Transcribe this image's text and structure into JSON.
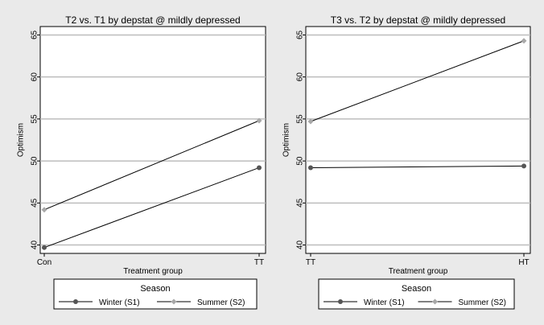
{
  "chart_data": [
    {
      "type": "line",
      "title": "T2 vs. T1 by depstat @ mildly depressed",
      "xlabel": "Treatment group",
      "ylabel": "Optimism",
      "categories": [
        "Con",
        "TT"
      ],
      "ylim": [
        39,
        66
      ],
      "yticks": [
        "40",
        "45",
        "50",
        "55",
        "60",
        "65"
      ],
      "grid": true,
      "series": [
        {
          "name": "Winter (S1)",
          "values": [
            39.7,
            49.2
          ],
          "color": "#555555",
          "marker": "circle"
        },
        {
          "name": "Summer (S2)",
          "values": [
            44.2,
            54.8
          ],
          "color": "#a8a8a8",
          "marker": "diamond"
        }
      ],
      "legend": {
        "title": "Season",
        "position": "bottom"
      }
    },
    {
      "type": "line",
      "title": "T3 vs. T2 by depstat @ mildly depressed",
      "xlabel": "Treatment group",
      "ylabel": "Optimism",
      "categories": [
        "TT",
        "HT"
      ],
      "ylim": [
        39,
        66
      ],
      "yticks": [
        "40",
        "45",
        "50",
        "55",
        "60",
        "65"
      ],
      "grid": true,
      "series": [
        {
          "name": "Winter (S1)",
          "values": [
            49.2,
            49.4
          ],
          "color": "#555555",
          "marker": "circle"
        },
        {
          "name": "Summer (S2)",
          "values": [
            54.7,
            64.3
          ],
          "color": "#a8a8a8",
          "marker": "diamond"
        }
      ],
      "legend": {
        "title": "Season",
        "position": "bottom"
      }
    }
  ]
}
